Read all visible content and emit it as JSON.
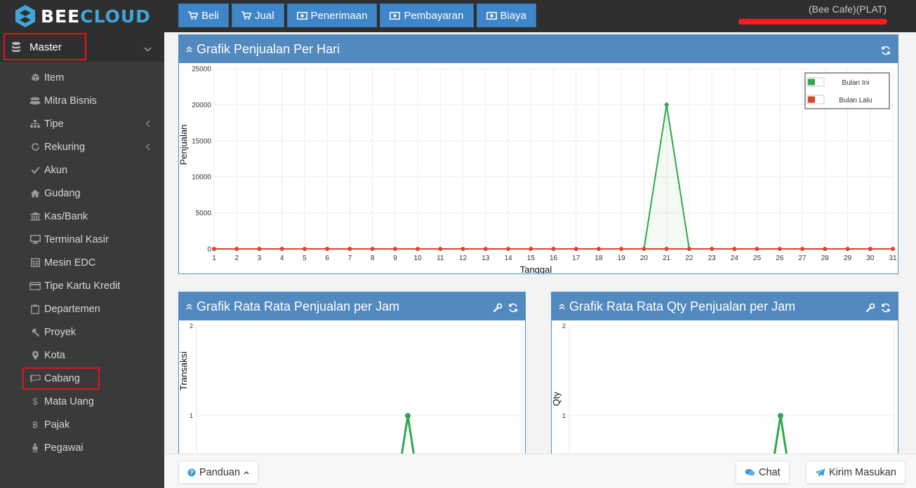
{
  "app": {
    "logo_text_a": "BEE",
    "logo_text_b": "CLOUD"
  },
  "topnav": [
    {
      "label": "Beli",
      "icon": "cart-icon"
    },
    {
      "label": "Jual",
      "icon": "cart-icon"
    },
    {
      "label": "Penerimaan",
      "icon": "money-icon"
    },
    {
      "label": "Pembayaran",
      "icon": "money-icon"
    },
    {
      "label": "Biaya",
      "icon": "money-icon"
    }
  ],
  "header": {
    "company": "(Bee Cafe)(PLAT)"
  },
  "sidebar": {
    "section": "Master",
    "items": [
      {
        "label": "Item",
        "icon": "cube-icon"
      },
      {
        "label": "Mitra Bisnis",
        "icon": "users-icon"
      },
      {
        "label": "Tipe",
        "icon": "sitemap-icon",
        "has_submenu": true
      },
      {
        "label": "Rekuring",
        "icon": "refresh-icon",
        "has_submenu": true
      },
      {
        "label": "Akun",
        "icon": "check-icon"
      },
      {
        "label": "Gudang",
        "icon": "home-icon"
      },
      {
        "label": "Kas/Bank",
        "icon": "bank-icon"
      },
      {
        "label": "Terminal Kasir",
        "icon": "monitor-icon"
      },
      {
        "label": "Mesin EDC",
        "icon": "calculator-icon"
      },
      {
        "label": "Tipe Kartu Kredit",
        "icon": "credit-card-icon"
      },
      {
        "label": "Departemen",
        "icon": "clipboard-icon"
      },
      {
        "label": "Proyek",
        "icon": "gavel-icon"
      },
      {
        "label": "Kota",
        "icon": "map-marker-icon"
      },
      {
        "label": "Cabang",
        "icon": "flag-icon"
      },
      {
        "label": "Mata Uang",
        "icon": "dollar-icon"
      },
      {
        "label": "Pajak",
        "icon": "bitcoin-icon"
      },
      {
        "label": "Pegawai",
        "icon": "person-icon"
      }
    ]
  },
  "panels": {
    "daily": {
      "title": "Grafik Penjualan Per Hari"
    },
    "hourly": {
      "title": "Grafik Rata Rata Penjualan per Jam"
    },
    "hourly_qty": {
      "title": "Grafik Rata Rata Qty Penjualan per Jam"
    }
  },
  "bottom": {
    "guide": "Panduan",
    "chat": "Chat",
    "feedback": "Kirim Masukan"
  },
  "colors": {
    "topbar": "#2f2f2f",
    "sidebar": "#3a3a3a",
    "accent": "#3f86c9",
    "panel_head": "#5289bf",
    "green": "#2ea84a",
    "red": "#d9452b",
    "highlight": "#e8101a"
  },
  "chart_data": [
    {
      "type": "line",
      "title": "Grafik Penjualan Per Hari",
      "xlabel": "Tanggal",
      "ylabel": "Penjualan",
      "x": [
        1,
        2,
        3,
        4,
        5,
        6,
        7,
        8,
        9,
        10,
        11,
        12,
        13,
        14,
        15,
        16,
        17,
        18,
        19,
        20,
        21,
        22,
        23,
        24,
        25,
        26,
        27,
        28,
        29,
        30,
        31
      ],
      "ylim": [
        0,
        25000
      ],
      "yticks": [
        0,
        5000,
        10000,
        15000,
        20000,
        25000
      ],
      "grid": true,
      "legend": "top-right",
      "series": [
        {
          "name": "Bulan Ini",
          "color": "#2ea84a",
          "values": [
            0,
            0,
            0,
            0,
            0,
            0,
            0,
            0,
            0,
            0,
            0,
            0,
            0,
            0,
            0,
            0,
            0,
            0,
            0,
            0,
            20000,
            0,
            0,
            0,
            0,
            0,
            0,
            0,
            0,
            0,
            0
          ]
        },
        {
          "name": "Bulan Lalu",
          "color": "#d9452b",
          "values": [
            0,
            0,
            0,
            0,
            0,
            0,
            0,
            0,
            0,
            0,
            0,
            0,
            0,
            0,
            0,
            0,
            0,
            0,
            0,
            0,
            0,
            0,
            0,
            0,
            0,
            0,
            0,
            0,
            0,
            0,
            0
          ]
        }
      ]
    },
    {
      "type": "line",
      "title": "Grafik Rata Rata Penjualan per Jam",
      "ylabel": "Transaksi",
      "yticks": [
        1,
        2
      ],
      "ylim": [
        0,
        2
      ],
      "grid": true,
      "peak": 1
    },
    {
      "type": "line",
      "title": "Grafik Rata Rata Qty Penjualan per Jam",
      "ylabel": "Qty",
      "yticks": [
        1,
        2
      ],
      "ylim": [
        0,
        2
      ],
      "grid": true,
      "peak": 1
    }
  ]
}
